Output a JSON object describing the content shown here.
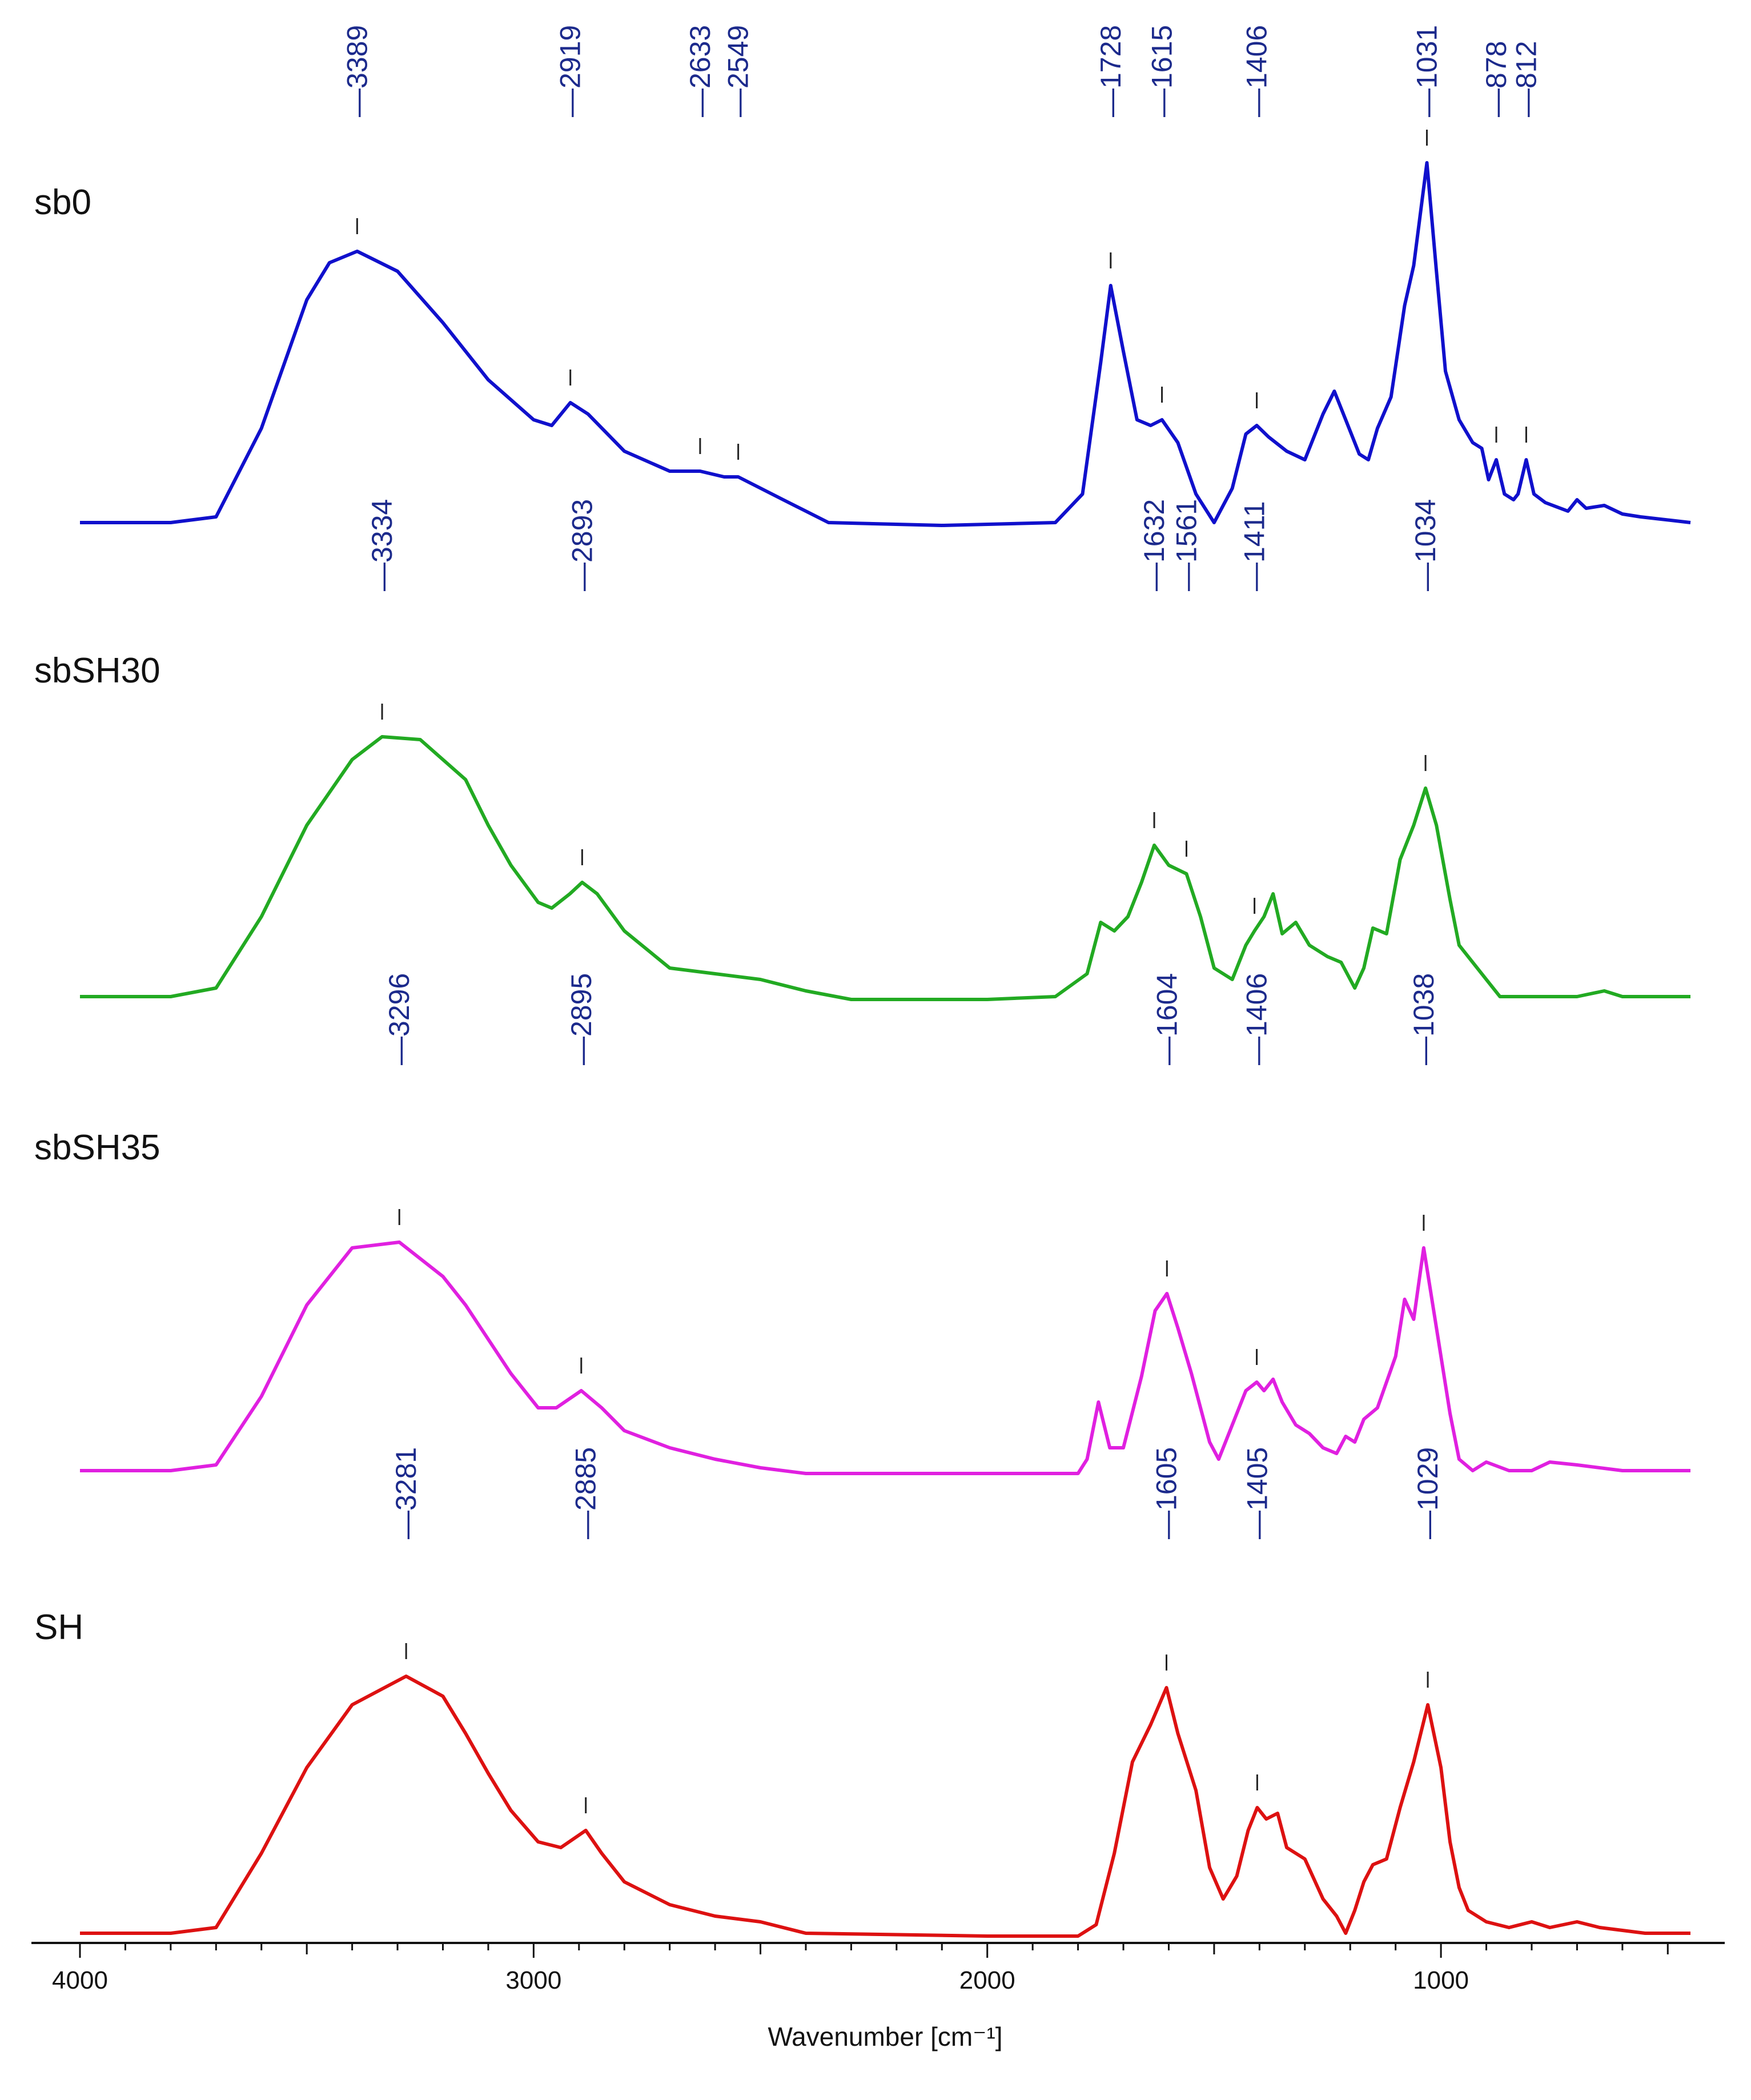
{
  "chart_data": {
    "type": "line",
    "title": "",
    "xlabel": "Wavenumber [cm⁻¹]",
    "ylabel": "",
    "xlim": [
      4000,
      450
    ],
    "x_ticks": [
      4000,
      3000,
      2000,
      1000
    ],
    "x_tick_labels": [
      "4000",
      "3000",
      "2000",
      "1000"
    ],
    "series": [
      {
        "name": "sb0",
        "color": "#1010cc",
        "peak_labels": [
          "3389",
          "2919",
          "2633",
          "2549",
          "1728",
          "1615",
          "1406",
          "1031",
          "878",
          "812"
        ],
        "peaks": [
          3389,
          2919,
          2633,
          2549,
          1728,
          1615,
          1406,
          1031,
          878,
          812
        ],
        "points": [
          [
            4000,
            0.02
          ],
          [
            3800,
            0.02
          ],
          [
            3700,
            0.04
          ],
          [
            3600,
            0.35
          ],
          [
            3500,
            0.8
          ],
          [
            3450,
            0.93
          ],
          [
            3389,
            0.97
          ],
          [
            3300,
            0.9
          ],
          [
            3200,
            0.72
          ],
          [
            3100,
            0.52
          ],
          [
            3000,
            0.38
          ],
          [
            2960,
            0.36
          ],
          [
            2919,
            0.44
          ],
          [
            2880,
            0.4
          ],
          [
            2800,
            0.27
          ],
          [
            2700,
            0.2
          ],
          [
            2633,
            0.2
          ],
          [
            2580,
            0.18
          ],
          [
            2549,
            0.18
          ],
          [
            2450,
            0.1
          ],
          [
            2350,
            0.02
          ],
          [
            2100,
            0.01
          ],
          [
            1850,
            0.02
          ],
          [
            1790,
            0.12
          ],
          [
            1750,
            0.58
          ],
          [
            1728,
            0.85
          ],
          [
            1700,
            0.62
          ],
          [
            1670,
            0.38
          ],
          [
            1640,
            0.36
          ],
          [
            1615,
            0.38
          ],
          [
            1580,
            0.3
          ],
          [
            1540,
            0.12
          ],
          [
            1500,
            0.02
          ],
          [
            1460,
            0.14
          ],
          [
            1430,
            0.33
          ],
          [
            1406,
            0.36
          ],
          [
            1380,
            0.32
          ],
          [
            1340,
            0.27
          ],
          [
            1300,
            0.24
          ],
          [
            1260,
            0.4
          ],
          [
            1235,
            0.48
          ],
          [
            1210,
            0.38
          ],
          [
            1180,
            0.26
          ],
          [
            1160,
            0.24
          ],
          [
            1140,
            0.35
          ],
          [
            1110,
            0.46
          ],
          [
            1080,
            0.78
          ],
          [
            1060,
            0.92
          ],
          [
            1031,
            1.28
          ],
          [
            1010,
            0.9
          ],
          [
            990,
            0.55
          ],
          [
            960,
            0.38
          ],
          [
            930,
            0.3
          ],
          [
            910,
            0.28
          ],
          [
            895,
            0.17
          ],
          [
            878,
            0.24
          ],
          [
            860,
            0.12
          ],
          [
            840,
            0.1
          ],
          [
            830,
            0.12
          ],
          [
            812,
            0.24
          ],
          [
            795,
            0.12
          ],
          [
            770,
            0.09
          ],
          [
            720,
            0.06
          ],
          [
            700,
            0.1
          ],
          [
            680,
            0.07
          ],
          [
            640,
            0.08
          ],
          [
            600,
            0.05
          ],
          [
            560,
            0.04
          ],
          [
            450,
            0.02
          ]
        ]
      },
      {
        "name": "sbSH30",
        "color": "#22aa22",
        "peak_labels": [
          "3334",
          "2893",
          "1632",
          "1561",
          "1411",
          "1034"
        ],
        "peaks": [
          3334,
          2893,
          1632,
          1561,
          1411,
          1034
        ],
        "points": [
          [
            4000,
            0.02
          ],
          [
            3800,
            0.02
          ],
          [
            3700,
            0.05
          ],
          [
            3600,
            0.3
          ],
          [
            3500,
            0.62
          ],
          [
            3400,
            0.85
          ],
          [
            3334,
            0.93
          ],
          [
            3250,
            0.92
          ],
          [
            3150,
            0.78
          ],
          [
            3100,
            0.62
          ],
          [
            3050,
            0.48
          ],
          [
            2990,
            0.35
          ],
          [
            2960,
            0.33
          ],
          [
            2920,
            0.38
          ],
          [
            2893,
            0.42
          ],
          [
            2860,
            0.38
          ],
          [
            2800,
            0.25
          ],
          [
            2700,
            0.12
          ],
          [
            2600,
            0.1
          ],
          [
            2500,
            0.08
          ],
          [
            2400,
            0.04
          ],
          [
            2300,
            0.01
          ],
          [
            2000,
            0.01
          ],
          [
            1850,
            0.02
          ],
          [
            1780,
            0.1
          ],
          [
            1750,
            0.28
          ],
          [
            1720,
            0.25
          ],
          [
            1690,
            0.3
          ],
          [
            1660,
            0.42
          ],
          [
            1632,
            0.55
          ],
          [
            1600,
            0.48
          ],
          [
            1561,
            0.45
          ],
          [
            1530,
            0.3
          ],
          [
            1500,
            0.12
          ],
          [
            1460,
            0.08
          ],
          [
            1430,
            0.2
          ],
          [
            1411,
            0.25
          ],
          [
            1390,
            0.3
          ],
          [
            1370,
            0.38
          ],
          [
            1350,
            0.24
          ],
          [
            1320,
            0.28
          ],
          [
            1290,
            0.2
          ],
          [
            1250,
            0.16
          ],
          [
            1220,
            0.14
          ],
          [
            1190,
            0.05
          ],
          [
            1170,
            0.12
          ],
          [
            1150,
            0.26
          ],
          [
            1120,
            0.24
          ],
          [
            1090,
            0.5
          ],
          [
            1060,
            0.62
          ],
          [
            1034,
            0.75
          ],
          [
            1010,
            0.62
          ],
          [
            980,
            0.36
          ],
          [
            960,
            0.2
          ],
          [
            930,
            0.14
          ],
          [
            900,
            0.08
          ],
          [
            870,
            0.02
          ],
          [
            700,
            0.02
          ],
          [
            640,
            0.04
          ],
          [
            600,
            0.02
          ],
          [
            450,
            0.02
          ]
        ]
      },
      {
        "name": "sbSH35",
        "color": "#e020e0",
        "peak_labels": [
          "3296",
          "2895",
          "1604",
          "1406",
          "1038"
        ],
        "peaks": [
          3296,
          2895,
          1604,
          1406,
          1038
        ],
        "points": [
          [
            4000,
            0.02
          ],
          [
            3800,
            0.02
          ],
          [
            3700,
            0.04
          ],
          [
            3600,
            0.28
          ],
          [
            3500,
            0.6
          ],
          [
            3400,
            0.8
          ],
          [
            3296,
            0.82
          ],
          [
            3200,
            0.7
          ],
          [
            3150,
            0.6
          ],
          [
            3100,
            0.48
          ],
          [
            3050,
            0.36
          ],
          [
            2990,
            0.24
          ],
          [
            2950,
            0.24
          ],
          [
            2895,
            0.3
          ],
          [
            2850,
            0.24
          ],
          [
            2800,
            0.16
          ],
          [
            2700,
            0.1
          ],
          [
            2600,
            0.06
          ],
          [
            2500,
            0.03
          ],
          [
            2400,
            0.01
          ],
          [
            2000,
            0.01
          ],
          [
            1800,
            0.01
          ],
          [
            1780,
            0.06
          ],
          [
            1755,
            0.26
          ],
          [
            1730,
            0.1
          ],
          [
            1700,
            0.1
          ],
          [
            1660,
            0.35
          ],
          [
            1630,
            0.58
          ],
          [
            1604,
            0.64
          ],
          [
            1580,
            0.52
          ],
          [
            1550,
            0.36
          ],
          [
            1510,
            0.12
          ],
          [
            1490,
            0.06
          ],
          [
            1460,
            0.18
          ],
          [
            1430,
            0.3
          ],
          [
            1406,
            0.33
          ],
          [
            1390,
            0.3
          ],
          [
            1370,
            0.34
          ],
          [
            1350,
            0.26
          ],
          [
            1320,
            0.18
          ],
          [
            1290,
            0.15
          ],
          [
            1260,
            0.1
          ],
          [
            1230,
            0.08
          ],
          [
            1210,
            0.14
          ],
          [
            1190,
            0.12
          ],
          [
            1170,
            0.2
          ],
          [
            1140,
            0.24
          ],
          [
            1100,
            0.42
          ],
          [
            1080,
            0.62
          ],
          [
            1060,
            0.55
          ],
          [
            1038,
            0.8
          ],
          [
            1010,
            0.52
          ],
          [
            980,
            0.22
          ],
          [
            960,
            0.06
          ],
          [
            930,
            0.02
          ],
          [
            900,
            0.05
          ],
          [
            850,
            0.02
          ],
          [
            800,
            0.02
          ],
          [
            760,
            0.05
          ],
          [
            700,
            0.04
          ],
          [
            600,
            0.02
          ],
          [
            450,
            0.02
          ]
        ]
      },
      {
        "name": "SH",
        "color": "#dd1111",
        "peak_labels": [
          "3281",
          "2885",
          "1605",
          "1405",
          "1029"
        ],
        "peaks": [
          3281,
          2885,
          1605,
          1405,
          1029
        ],
        "points": [
          [
            4000,
            0.02
          ],
          [
            3800,
            0.02
          ],
          [
            3700,
            0.04
          ],
          [
            3600,
            0.3
          ],
          [
            3500,
            0.6
          ],
          [
            3400,
            0.82
          ],
          [
            3281,
            0.92
          ],
          [
            3200,
            0.85
          ],
          [
            3150,
            0.72
          ],
          [
            3100,
            0.58
          ],
          [
            3050,
            0.45
          ],
          [
            2990,
            0.34
          ],
          [
            2940,
            0.32
          ],
          [
            2885,
            0.38
          ],
          [
            2850,
            0.3
          ],
          [
            2800,
            0.2
          ],
          [
            2700,
            0.12
          ],
          [
            2600,
            0.08
          ],
          [
            2500,
            0.06
          ],
          [
            2400,
            0.02
          ],
          [
            2000,
            0.01
          ],
          [
            1800,
            0.01
          ],
          [
            1760,
            0.05
          ],
          [
            1720,
            0.3
          ],
          [
            1680,
            0.62
          ],
          [
            1640,
            0.75
          ],
          [
            1605,
            0.88
          ],
          [
            1580,
            0.72
          ],
          [
            1540,
            0.52
          ],
          [
            1510,
            0.25
          ],
          [
            1480,
            0.14
          ],
          [
            1450,
            0.22
          ],
          [
            1425,
            0.38
          ],
          [
            1405,
            0.46
          ],
          [
            1385,
            0.42
          ],
          [
            1360,
            0.44
          ],
          [
            1340,
            0.32
          ],
          [
            1300,
            0.28
          ],
          [
            1260,
            0.14
          ],
          [
            1230,
            0.08
          ],
          [
            1210,
            0.02
          ],
          [
            1190,
            0.1
          ],
          [
            1170,
            0.2
          ],
          [
            1150,
            0.26
          ],
          [
            1120,
            0.28
          ],
          [
            1090,
            0.46
          ],
          [
            1060,
            0.62
          ],
          [
            1029,
            0.82
          ],
          [
            1000,
            0.6
          ],
          [
            980,
            0.34
          ],
          [
            960,
            0.18
          ],
          [
            940,
            0.1
          ],
          [
            900,
            0.06
          ],
          [
            850,
            0.04
          ],
          [
            800,
            0.06
          ],
          [
            760,
            0.04
          ],
          [
            700,
            0.06
          ],
          [
            650,
            0.04
          ],
          [
            550,
            0.02
          ],
          [
            450,
            0.02
          ]
        ]
      }
    ]
  }
}
